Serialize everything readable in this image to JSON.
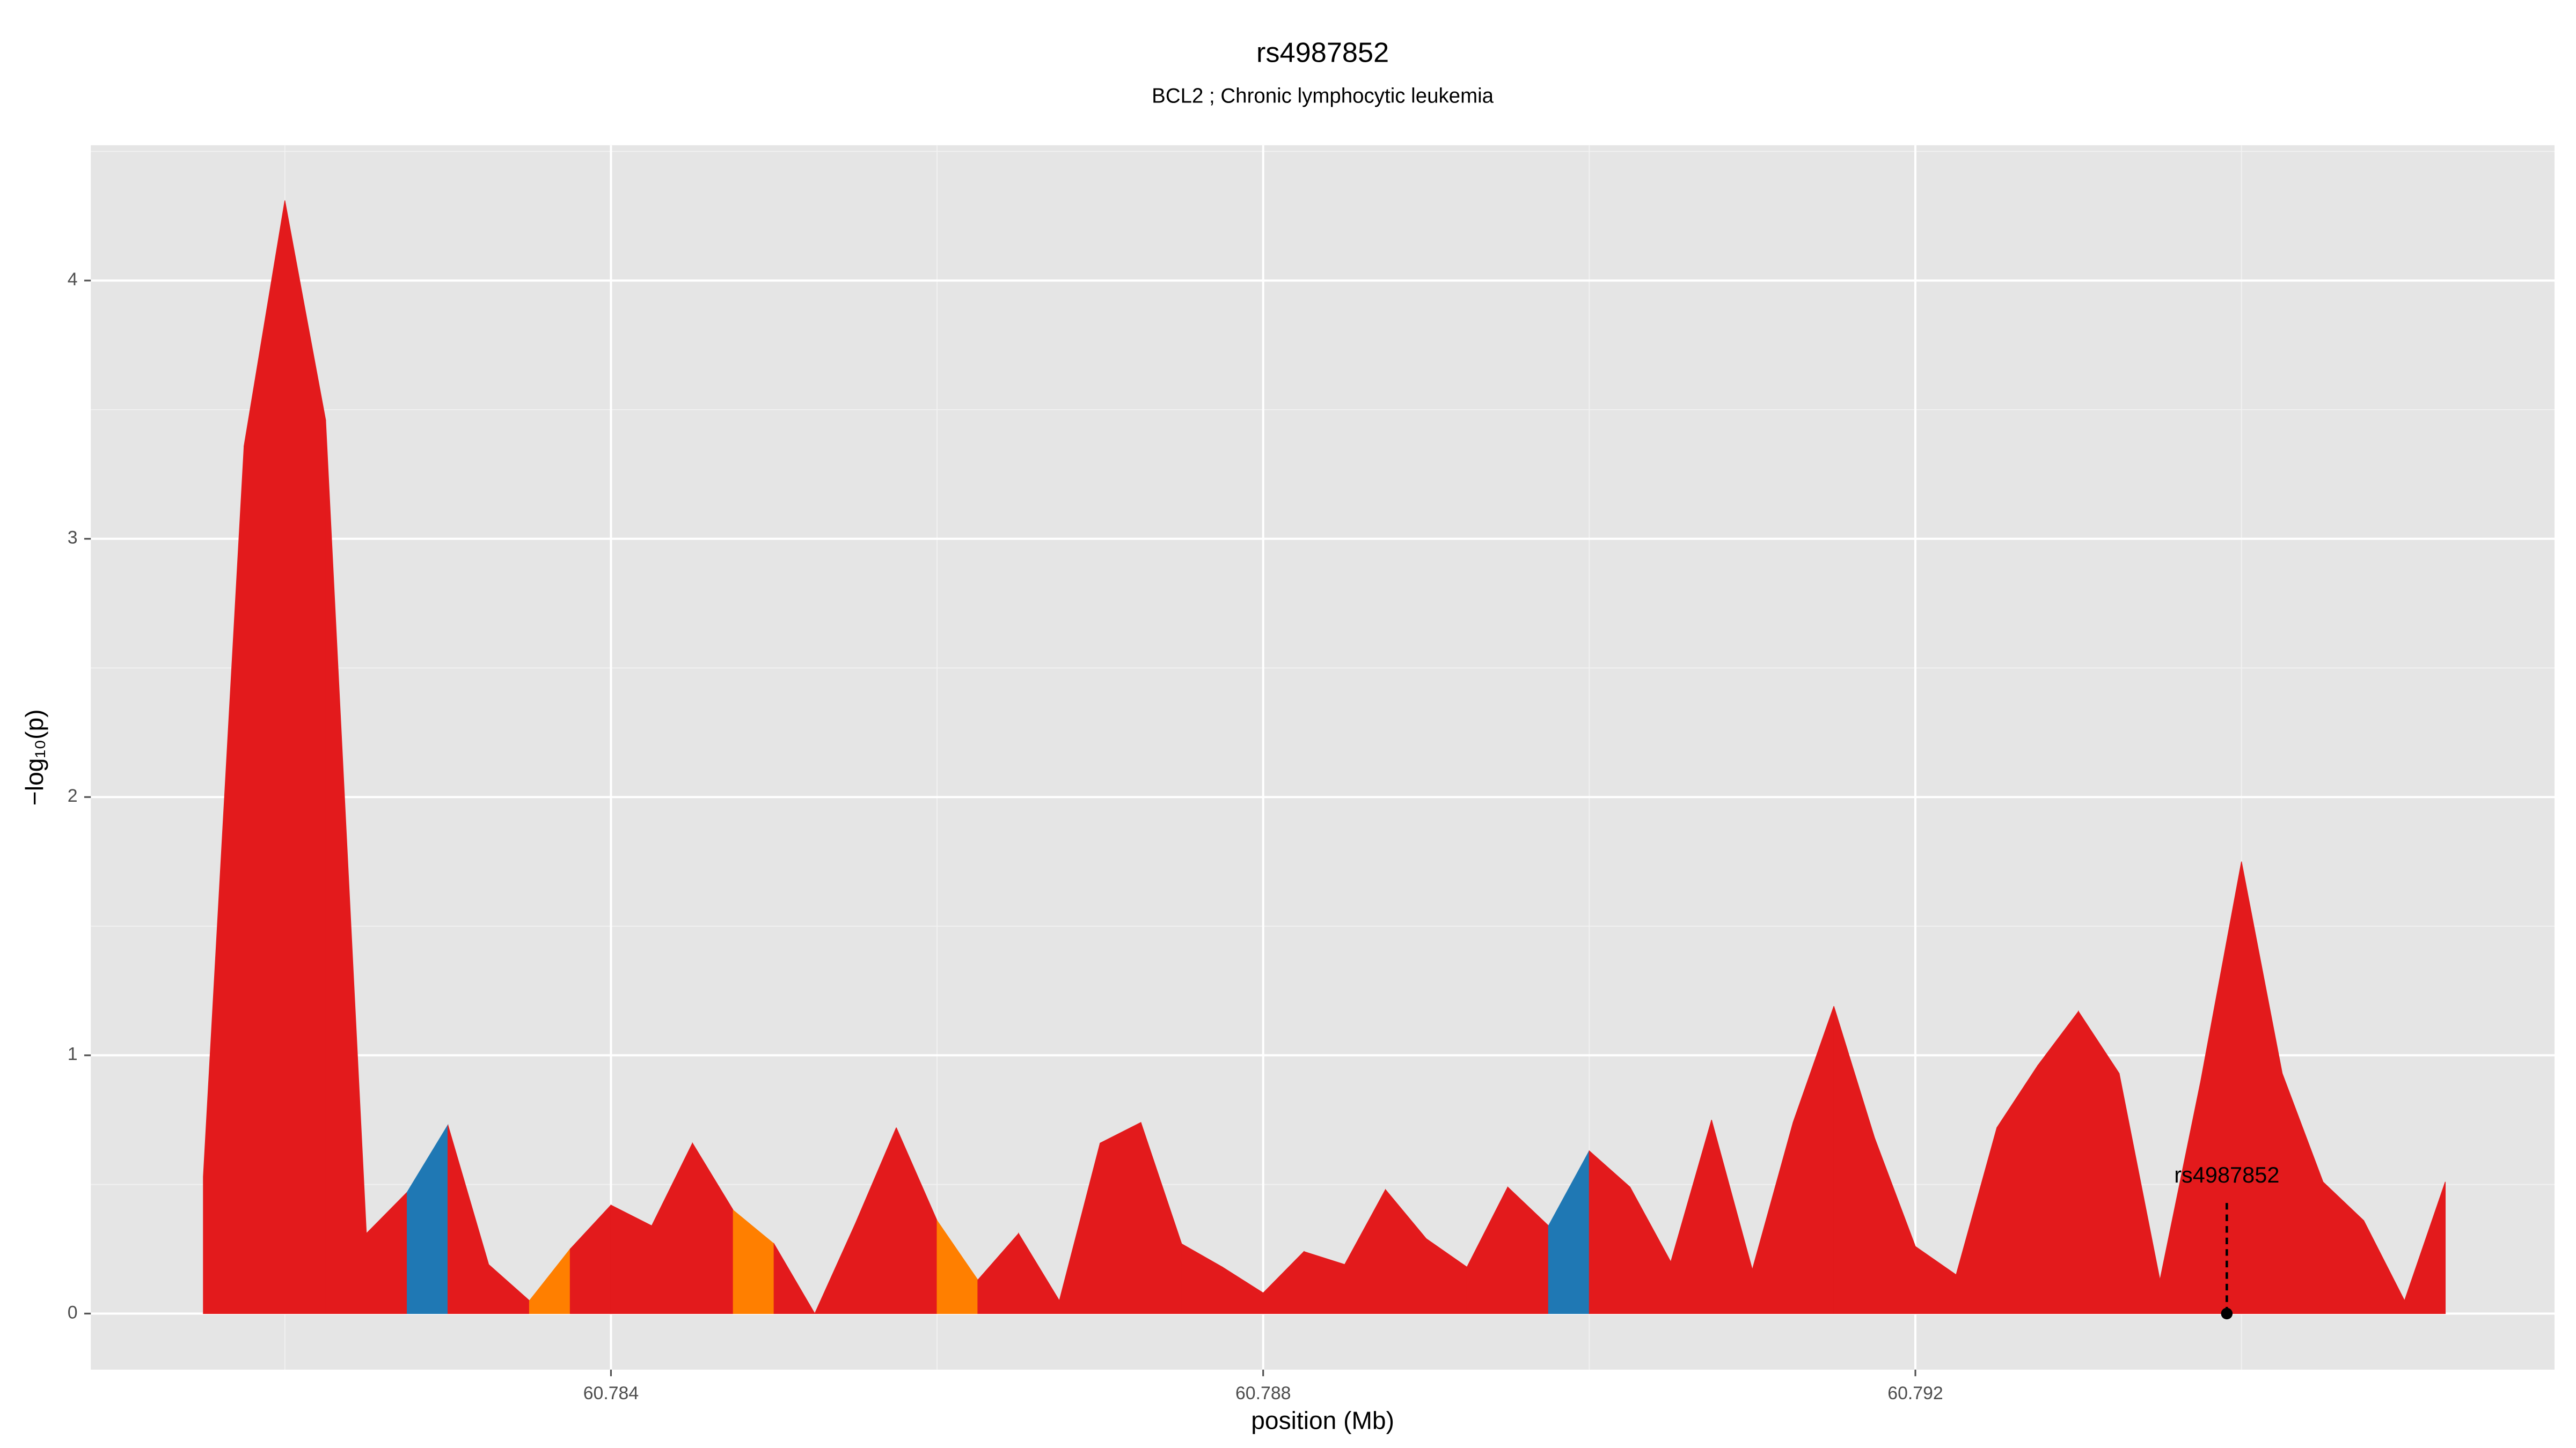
{
  "chart_data": {
    "type": "area",
    "title": "rs4987852",
    "subtitle": "BCL2 ; Chronic lymphocytic leukemia",
    "x_label": "position (Mb)",
    "y_label": "−log₁₀(p)",
    "x": [
      60.7815,
      60.78175,
      60.782,
      60.78225,
      60.7825,
      60.78275,
      60.783,
      60.78325,
      60.7835,
      60.78375,
      60.784,
      60.78425,
      60.7845,
      60.78475,
      60.785,
      60.78525,
      60.7855,
      60.78575,
      60.786,
      60.78625,
      60.7865,
      60.78675,
      60.787,
      60.78725,
      60.7875,
      60.78775,
      60.788,
      60.78825,
      60.7885,
      60.78875,
      60.789,
      60.78925,
      60.7895,
      60.78975,
      60.79,
      60.79025,
      60.7905,
      60.79075,
      60.791,
      60.79125,
      60.7915,
      60.79175,
      60.792,
      60.79225,
      60.7925,
      60.79275,
      60.793,
      60.79325,
      60.7935,
      60.79375,
      60.794,
      60.79425,
      60.7945,
      60.79475,
      60.795,
      60.79525
    ],
    "values": [
      0.53,
      3.36,
      4.31,
      3.46,
      0.31,
      0.47,
      0.73,
      0.19,
      0.05,
      0.25,
      0.42,
      0.34,
      0.66,
      0.4,
      0.27,
      0.0,
      0.35,
      0.72,
      0.36,
      0.13,
      0.31,
      0.05,
      0.66,
      0.74,
      0.27,
      0.18,
      0.08,
      0.24,
      0.19,
      0.48,
      0.29,
      0.18,
      0.49,
      0.34,
      0.63,
      0.49,
      0.2,
      0.75,
      0.17,
      0.74,
      1.19,
      0.68,
      0.26,
      0.15,
      0.72,
      0.96,
      1.17,
      0.93,
      0.13,
      0.9,
      1.75,
      0.93,
      0.51,
      0.36,
      0.05,
      0.51
    ],
    "colors": [
      "#e31a1c",
      "#e31a1c",
      "#e31a1c",
      "#e31a1c",
      "#e31a1c",
      "#1f78b4",
      "#e31a1c",
      "#e31a1c",
      "#ff7f00",
      "#e31a1c",
      "#e31a1c",
      "#e31a1c",
      "#e31a1c",
      "#ff7f00",
      "#e31a1c",
      "#e31a1c",
      "#e31a1c",
      "#e31a1c",
      "#ff7f00",
      "#e31a1c",
      "#e31a1c",
      "#e31a1c",
      "#e31a1c",
      "#e31a1c",
      "#e31a1c",
      "#e31a1c",
      "#e31a1c",
      "#e31a1c",
      "#e31a1c",
      "#e31a1c",
      "#e31a1c",
      "#e31a1c",
      "#e31a1c",
      "#1f78b4",
      "#e31a1c",
      "#e31a1c",
      "#e31a1c",
      "#e31a1c",
      "#e31a1c",
      "#e31a1c",
      "#e31a1c",
      "#e31a1c",
      "#e31a1c",
      "#e31a1c",
      "#e31a1c",
      "#e31a1c",
      "#e31a1c",
      "#e31a1c",
      "#e31a1c",
      "#e31a1c",
      "#e31a1c",
      "#e31a1c",
      "#e31a1c",
      "#e31a1c",
      "#e31a1c",
      "#e31a1c"
    ],
    "xlim": [
      60.78081,
      60.79592
    ],
    "ylim": [
      -0.217,
      4.524
    ],
    "xticks": [
      60.784,
      60.788,
      60.792
    ],
    "yticks": [
      0,
      1,
      2,
      3,
      4
    ],
    "x_minor_grid": [
      60.782,
      60.786,
      60.79,
      60.794
    ],
    "y_minor_grid": [
      0.5,
      1.5,
      2.5,
      3.5,
      4.5
    ],
    "grid": true,
    "annotation": {
      "text": "rs4987852",
      "x": 60.79391,
      "y": 0
    }
  }
}
